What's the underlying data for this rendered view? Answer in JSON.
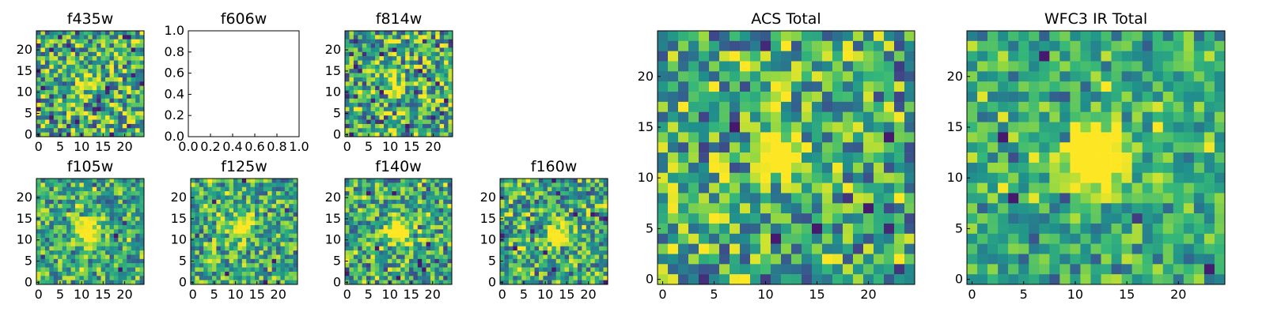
{
  "chart_data": [
    {
      "type": "heatmap",
      "title": "f435w",
      "xticks": [
        "0",
        "5",
        "10",
        "15",
        "20"
      ],
      "yticks": [
        "0",
        "5",
        "10",
        "15",
        "20"
      ],
      "xlim": [
        -0.5,
        24.5
      ],
      "ylim": [
        -0.5,
        24.5
      ],
      "grid_size": 25,
      "source_center": [
        11,
        12
      ],
      "source_strength": 0.55,
      "source_sigma": 1.6,
      "noise": 1.0,
      "cell_scale": 1,
      "seed": 11
    },
    {
      "type": "empty",
      "title": "f606w",
      "xticks": [
        "0.0",
        "0.2",
        "0.4",
        "0.6",
        "0.8",
        "1.0"
      ],
      "yticks": [
        "0.0",
        "0.2",
        "0.4",
        "0.6",
        "0.8",
        "1.0"
      ],
      "xlim": [
        0,
        1
      ],
      "ylim": [
        0,
        1
      ]
    },
    {
      "type": "heatmap",
      "title": "f814w",
      "xticks": [
        "0",
        "5",
        "10",
        "15",
        "20"
      ],
      "yticks": [
        "0",
        "5",
        "10",
        "15",
        "20"
      ],
      "xlim": [
        -0.5,
        24.5
      ],
      "ylim": [
        -0.5,
        24.5
      ],
      "grid_size": 25,
      "source_center": [
        11,
        12
      ],
      "source_strength": 0.6,
      "source_sigma": 1.7,
      "noise": 1.0,
      "cell_scale": 1,
      "seed": 23
    },
    {
      "type": "heatmap",
      "title": "f105w",
      "xticks": [
        "0",
        "5",
        "10",
        "15",
        "20"
      ],
      "yticks": [
        "0",
        "5",
        "10",
        "15",
        "20"
      ],
      "xlim": [
        -0.5,
        24.5
      ],
      "ylim": [
        -0.5,
        24.5
      ],
      "grid_size": 25,
      "source_center": [
        11,
        12
      ],
      "source_strength": 0.7,
      "source_sigma": 2.0,
      "noise": 0.7,
      "cell_scale": 1,
      "seed": 37
    },
    {
      "type": "heatmap",
      "title": "f125w",
      "xticks": [
        "0",
        "5",
        "10",
        "15",
        "20"
      ],
      "yticks": [
        "0",
        "5",
        "10",
        "15",
        "20"
      ],
      "xlim": [
        -0.5,
        24.5
      ],
      "ylim": [
        -0.5,
        24.5
      ],
      "grid_size": 25,
      "source_center": [
        11,
        13
      ],
      "source_strength": 0.6,
      "source_sigma": 2.2,
      "noise": 0.75,
      "cell_scale": 1,
      "seed": 41
    },
    {
      "type": "heatmap",
      "title": "f140w",
      "xticks": [
        "0",
        "5",
        "10",
        "15",
        "20"
      ],
      "yticks": [
        "0",
        "5",
        "10",
        "15",
        "20"
      ],
      "xlim": [
        -0.5,
        24.5
      ],
      "ylim": [
        -0.5,
        24.5
      ],
      "grid_size": 25,
      "source_center": [
        12,
        12
      ],
      "source_strength": 0.5,
      "source_sigma": 2.3,
      "noise": 0.85,
      "cell_scale": 1,
      "seed": 53
    },
    {
      "type": "heatmap",
      "title": "f160w",
      "xticks": [
        "0",
        "5",
        "10",
        "15",
        "20"
      ],
      "yticks": [
        "0",
        "5",
        "10",
        "15",
        "20"
      ],
      "xlim": [
        -0.5,
        24.5
      ],
      "ylim": [
        -0.5,
        24.5
      ],
      "grid_size": 25,
      "source_center": [
        13,
        12
      ],
      "source_strength": 0.75,
      "source_sigma": 1.9,
      "noise": 0.8,
      "cell_scale": 1,
      "seed": 67
    },
    {
      "type": "heatmap",
      "title": "ACS Total",
      "xticks": [
        "0",
        "5",
        "10",
        "15",
        "20"
      ],
      "yticks": [
        "0",
        "5",
        "10",
        "15",
        "20"
      ],
      "xlim": [
        -0.5,
        24.5
      ],
      "ylim": [
        -0.5,
        24.5
      ],
      "grid_size": 25,
      "source_center": [
        11.5,
        12
      ],
      "source_strength": 1.0,
      "source_sigma": 1.3,
      "noise": 0.9,
      "cell_scale": 1,
      "seed": 79
    },
    {
      "type": "heatmap",
      "title": "WFC3 IR Total",
      "xticks": [
        "0",
        "5",
        "10",
        "15",
        "20"
      ],
      "yticks": [
        "0",
        "5",
        "10",
        "15",
        "20"
      ],
      "xlim": [
        -0.5,
        24.5
      ],
      "ylim": [
        -0.5,
        24.5
      ],
      "grid_size": 25,
      "source_center": [
        12,
        12
      ],
      "source_strength": 1.0,
      "source_sigma": 2.1,
      "noise": 0.55,
      "cell_scale": 1,
      "seed": 97
    }
  ],
  "colors": {
    "colormap": "viridis-like",
    "axis": "#000000",
    "background": "#ffffff"
  }
}
